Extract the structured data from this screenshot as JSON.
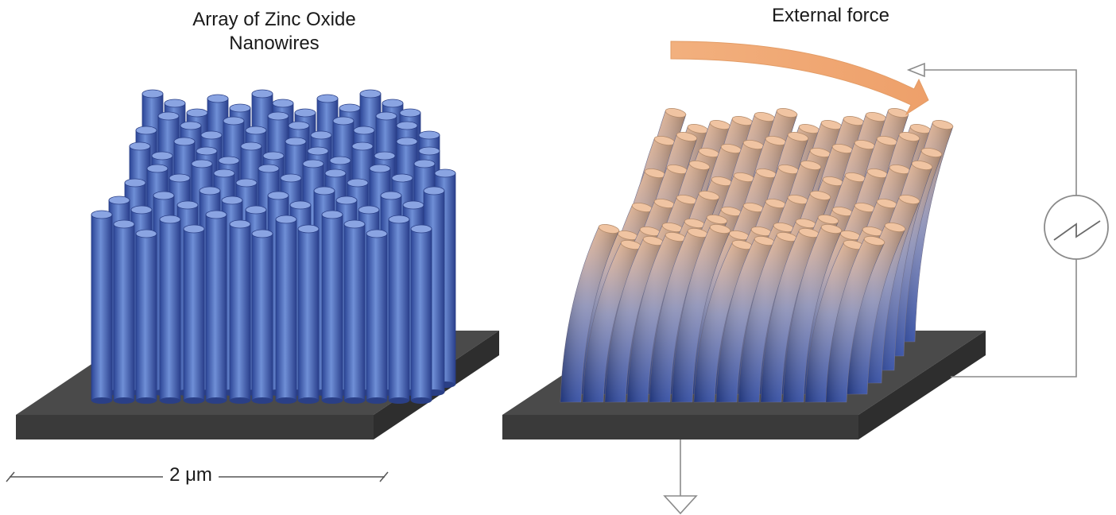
{
  "left_panel": {
    "title_line1": "Array of Zinc Oxide",
    "title_line2": "Nanowires",
    "scale_label": "2 μm",
    "wire_color": "#4a67b5",
    "substrate_color": "#3d3d3d"
  },
  "right_panel": {
    "title": "External force",
    "arrow_color": "#f0a870",
    "wire_top_color": "#e8b692",
    "wire_bottom_color": "#2e4aa4",
    "substrate_color": "#3d3d3d",
    "meter_icon": "ac-source-icon",
    "ground_icon": "ground-icon"
  }
}
